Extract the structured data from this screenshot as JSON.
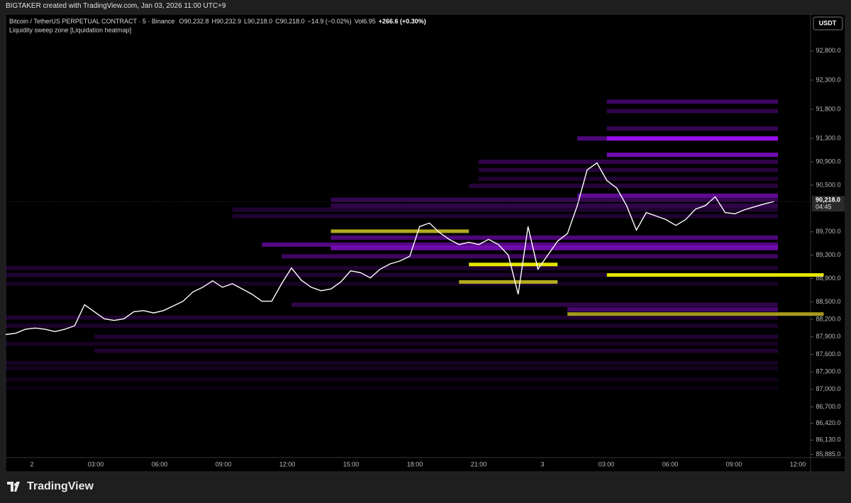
{
  "header": {
    "credit": "BIGTAKER created with TradingView.com, Jan 03, 2026 11:00 UTC+9",
    "symbol": "Bitcoin / TetherUS PERPETUAL CONTRACT · 5 · Binance",
    "ohlc": [
      {
        "label": "O",
        "value": "90,232.8"
      },
      {
        "label": "H",
        "value": "90,232.9"
      },
      {
        "label": "L",
        "value": "90,218.0"
      },
      {
        "label": "C",
        "value": "90,218.0"
      }
    ],
    "change": "−14.9 (−0.02%)",
    "volume_label": "Vol",
    "volume": "6.95",
    "session_change": "+266.6 (+0.30%)",
    "indicator": "Liquidity sweep zone [Liquidation heatmap]",
    "currency": "USDT"
  },
  "chart": {
    "ylim": [
      85830,
      93430
    ],
    "yticks": [
      {
        "value": 92800,
        "label": "92,800.0"
      },
      {
        "value": 92300,
        "label": "92,300.0"
      },
      {
        "value": 91800,
        "label": "91,800.0"
      },
      {
        "value": 91300,
        "label": "91,300.0"
      },
      {
        "value": 90900,
        "label": "90,900.0"
      },
      {
        "value": 90500,
        "label": "90,500.0"
      },
      {
        "value": 89700,
        "label": "89,700.0"
      },
      {
        "value": 89300,
        "label": "89,300.0"
      },
      {
        "value": 88900,
        "label": "88,900.0"
      },
      {
        "value": 88500,
        "label": "88,500.0"
      },
      {
        "value": 88200,
        "label": "88,200.0"
      },
      {
        "value": 87900,
        "label": "87,900.0"
      },
      {
        "value": 87600,
        "label": "87,600.0"
      },
      {
        "value": 87300,
        "label": "87,300.0"
      },
      {
        "value": 87000,
        "label": "87,000.0"
      },
      {
        "value": 86700,
        "label": "86,700.0"
      },
      {
        "value": 86420,
        "label": "86,420.0"
      },
      {
        "value": 86130,
        "label": "86,130.0"
      },
      {
        "value": 85885,
        "label": "85,885.0"
      }
    ],
    "last_price": {
      "value": 90218,
      "label": "90,218.0"
    },
    "countdown": "04:45",
    "time_labels": [
      "2",
      "03:00",
      "06:00",
      "09:00",
      "12:00",
      "15:00",
      "18:00",
      "21:00",
      "3",
      "03:00",
      "06:00",
      "09:00",
      "12:00"
    ],
    "price_color": "#ffffff",
    "prices": [
      87940,
      87960,
      88030,
      88050,
      88030,
      87990,
      88030,
      88090,
      88450,
      88330,
      88210,
      88180,
      88210,
      88330,
      88350,
      88310,
      88350,
      88430,
      88510,
      88670,
      88750,
      88860,
      88750,
      88810,
      88720,
      88630,
      88510,
      88510,
      88810,
      89080,
      88870,
      88750,
      88690,
      88720,
      88840,
      89030,
      89000,
      88910,
      89060,
      89150,
      89200,
      89280,
      89790,
      89850,
      89690,
      89570,
      89480,
      89520,
      89480,
      89570,
      89480,
      89300,
      88630,
      89790,
      89060,
      89300,
      89540,
      89670,
      90150,
      90760,
      90880,
      90580,
      90450,
      90150,
      89730,
      90030,
      89970,
      89910,
      89810,
      89910,
      90090,
      90150,
      90300,
      90030,
      90010,
      90080,
      90130,
      90180,
      90220
    ],
    "heatmap_color": "#9a10f0",
    "levels": [
      {
        "price": 91930,
        "start": 61,
        "intensity": 0.4
      },
      {
        "price": 91770,
        "start": 61,
        "intensity": 0.3
      },
      {
        "price": 91470,
        "start": 61,
        "intensity": 0.35
      },
      {
        "price": 91300,
        "start": 58,
        "intensity": 0.5
      },
      {
        "price": 91300,
        "start": 61,
        "intensity": 0.95
      },
      {
        "price": 91020,
        "start": 61,
        "intensity": 0.75
      },
      {
        "price": 90900,
        "start": 48,
        "intensity": 0.3
      },
      {
        "price": 90760,
        "start": 48,
        "intensity": 0.25
      },
      {
        "price": 90610,
        "start": 48,
        "intensity": 0.2
      },
      {
        "price": 90490,
        "start": 47,
        "intensity": 0.25
      },
      {
        "price": 90320,
        "start": 58,
        "intensity": 0.6
      },
      {
        "price": 90250,
        "start": 33,
        "intensity": 0.35
      },
      {
        "price": 90150,
        "start": 33,
        "intensity": 0.3
      },
      {
        "price": 90080,
        "start": 23,
        "intensity": 0.2
      },
      {
        "price": 89970,
        "start": 23,
        "intensity": 0.2
      },
      {
        "price": 89600,
        "start": 33,
        "intensity": 0.5
      },
      {
        "price": 89480,
        "start": 26,
        "intensity": 0.55
      },
      {
        "price": 89420,
        "start": 33,
        "intensity": 0.7
      },
      {
        "price": 89280,
        "start": 28,
        "intensity": 0.4
      },
      {
        "price": 89080,
        "start": 0,
        "intensity": 0.2
      },
      {
        "price": 88960,
        "start": 0,
        "intensity": 0.2
      },
      {
        "price": 88810,
        "start": 0,
        "intensity": 0.15
      },
      {
        "price": 88450,
        "start": 29,
        "intensity": 0.3
      },
      {
        "price": 88370,
        "start": 57,
        "intensity": 0.45
      },
      {
        "price": 88230,
        "start": 0,
        "intensity": 0.2
      },
      {
        "price": 88090,
        "start": 0,
        "intensity": 0.18
      },
      {
        "price": 87900,
        "start": 9,
        "intensity": 0.2
      },
      {
        "price": 87780,
        "start": 0,
        "intensity": 0.15
      },
      {
        "price": 87660,
        "start": 9,
        "intensity": 0.2
      },
      {
        "price": 87450,
        "start": 0,
        "intensity": 0.15
      },
      {
        "price": 87360,
        "start": 0,
        "intensity": 0.12
      },
      {
        "price": 87170,
        "start": 0,
        "intensity": 0.1
      },
      {
        "price": 87020,
        "start": 0,
        "intensity": 0.08
      }
    ],
    "sweeps": [
      {
        "price": 89710,
        "start": 33,
        "end": 47,
        "color": "#b4aa1e"
      },
      {
        "price": 89140,
        "start": 47,
        "end": 56,
        "color": "#e6e600"
      },
      {
        "price": 88840,
        "start": 46,
        "end": 56,
        "color": "#b4aa1e"
      },
      {
        "price": 88960,
        "start": 61,
        "end": 83,
        "color": "#e6e600"
      },
      {
        "price": 88290,
        "start": 57,
        "end": 83,
        "color": "#a89a1c"
      }
    ]
  },
  "footer": {
    "brand": "TradingView"
  }
}
